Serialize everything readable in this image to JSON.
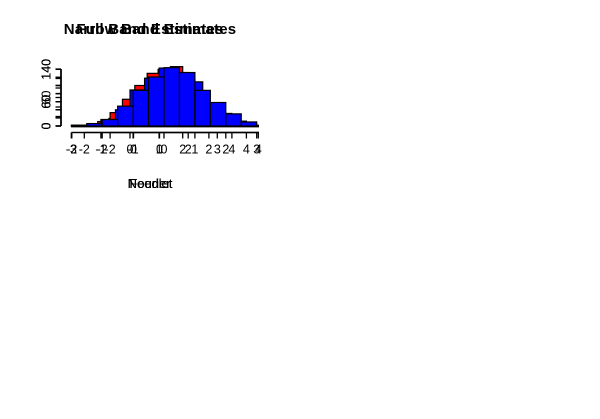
{
  "figure": {
    "background": "#ffffff",
    "axis_color": "#000000",
    "text_color": "#000000"
  },
  "chart_data": [
    {
      "type": "histogram",
      "panel": "top-left",
      "title": "Full Band Estimates",
      "xlabel": "Fourier",
      "ylabel": "",
      "bar_color": "#FF0000",
      "bar_border_color": "#000000",
      "bin_start": -1.5,
      "bin_width": 0.5,
      "counts": [
        4,
        16,
        32,
        67,
        100,
        119,
        125,
        98,
        55,
        30,
        13
      ],
      "xticks": [
        -2,
        0,
        2,
        4
      ],
      "ytick_step": 20,
      "ytick_max": 120,
      "ytick_labeled": [
        0,
        60
      ],
      "xlim": [
        -2.9,
        5.1
      ],
      "ylim": [
        0,
        126
      ]
    },
    {
      "type": "histogram",
      "panel": "top-right",
      "title": "Narrow Band Estimates",
      "xlabel": "Fourier",
      "ylabel": "",
      "bar_color": "#FF0000",
      "bar_border_color": "#000000",
      "bin_start": -2.5,
      "bin_width": 0.5,
      "counts": [
        11,
        33,
        66,
        100,
        130,
        143,
        118,
        75,
        38,
        14,
        7
      ],
      "xticks": [
        -2,
        0,
        2,
        4
      ],
      "ytick_step": 20,
      "ytick_max": 140,
      "ytick_labeled": [
        0,
        60,
        140
      ],
      "xlim": [
        -4.0,
        4.0
      ],
      "ylim": [
        0,
        148
      ]
    },
    {
      "type": "histogram",
      "panel": "bottom-left",
      "title": "",
      "xlabel": "Needlet",
      "ylabel": "",
      "bar_color": "#0000FF",
      "bar_border_color": "#000000",
      "bin_start": -1.0,
      "bin_width": 0.5,
      "counts": [
        16,
        40,
        89,
        118,
        143,
        132,
        109,
        49,
        31,
        12
      ],
      "xticks": [
        -2,
        -1,
        0,
        1,
        2,
        3,
        4
      ],
      "ytick_step": 20,
      "ytick_max": 140,
      "ytick_labeled": [
        0,
        60,
        140
      ],
      "xlim": [
        -2.4,
        4.4
      ],
      "ylim": [
        0,
        148
      ]
    },
    {
      "type": "histogram",
      "panel": "bottom-right",
      "title": "",
      "xlabel": "Needlet",
      "ylabel": "",
      "bar_color": "#0000FF",
      "bar_border_color": "#000000",
      "bin_start": -3.0,
      "bin_width": 0.5,
      "counts": [
        2,
        6,
        16,
        49,
        88,
        121,
        144,
        132,
        88,
        58,
        30,
        10
      ],
      "xticks": [
        -3,
        -2,
        -1,
        0,
        1,
        2,
        3
      ],
      "ytick_step": 20,
      "ytick_max": 140,
      "ytick_labeled": [
        0,
        60,
        140
      ],
      "xlim": [
        -3.3,
        3.2
      ],
      "ylim": [
        0,
        148
      ]
    }
  ]
}
